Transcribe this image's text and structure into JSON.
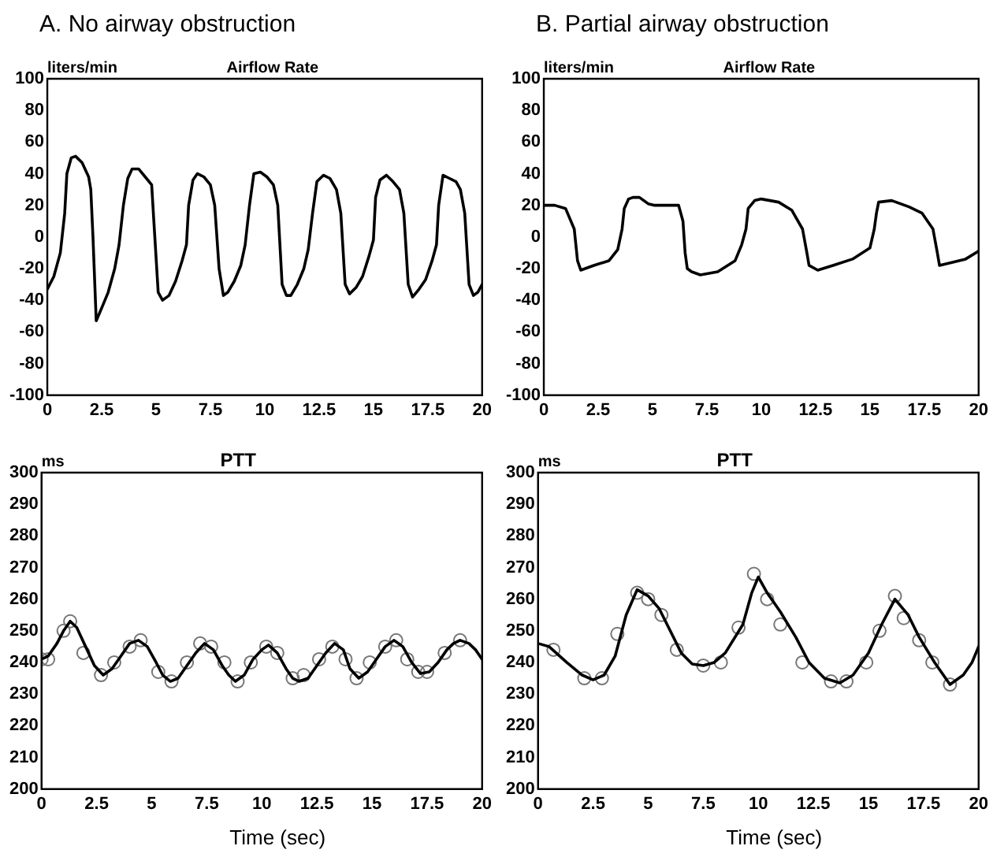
{
  "chart_data": [
    {
      "type": "line",
      "title": "A. No airway obstruction",
      "subtitle": "Airflow Rate",
      "ylabel": "liters/min",
      "xlim": [
        0,
        20
      ],
      "xticks": [
        0,
        2.5,
        5,
        7.5,
        10,
        12.5,
        15,
        17.5,
        20
      ],
      "ylim": [
        -100,
        100
      ],
      "yticks": [
        -100,
        -80,
        -60,
        -40,
        -20,
        0,
        20,
        40,
        60,
        80,
        100
      ],
      "grid": false,
      "marker": "none",
      "series": [
        {
          "type": "line",
          "color": "#000000",
          "x": [
            0,
            0.3,
            0.6,
            0.8,
            0.9,
            1.1,
            1.3,
            1.6,
            1.9,
            2.0,
            2.1,
            2.25,
            2.5,
            2.8,
            3.1,
            3.3,
            3.5,
            3.7,
            3.9,
            4.2,
            4.5,
            4.8,
            4.9,
            5.1,
            5.3,
            5.6,
            5.9,
            6.2,
            6.4,
            6.5,
            6.7,
            6.9,
            7.2,
            7.5,
            7.7,
            7.9,
            8.1,
            8.3,
            8.6,
            8.9,
            9.1,
            9.3,
            9.5,
            9.8,
            10.1,
            10.4,
            10.6,
            10.8,
            11.0,
            11.2,
            11.5,
            11.8,
            12.0,
            12.2,
            12.4,
            12.7,
            13.0,
            13.3,
            13.5,
            13.7,
            13.9,
            14.2,
            14.5,
            14.8,
            15.0,
            15.1,
            15.3,
            15.6,
            15.9,
            16.2,
            16.4,
            16.6,
            16.8,
            17.1,
            17.4,
            17.7,
            17.9,
            18.0,
            18.2,
            18.5,
            18.8,
            19.0,
            19.2,
            19.4,
            19.6,
            19.8,
            20
          ],
          "values": [
            -33,
            -25,
            -10,
            15,
            40,
            50,
            51,
            47,
            38,
            30,
            0,
            -53,
            -45,
            -35,
            -20,
            -5,
            20,
            37,
            43,
            43,
            38,
            33,
            10,
            -35,
            -40,
            -37,
            -28,
            -15,
            -5,
            20,
            36,
            40,
            38,
            33,
            20,
            -20,
            -37,
            -35,
            -28,
            -18,
            -5,
            20,
            40,
            41,
            38,
            33,
            20,
            -30,
            -37,
            -37,
            -30,
            -20,
            -8,
            15,
            35,
            39,
            37,
            30,
            15,
            -30,
            -36,
            -32,
            -25,
            -12,
            -2,
            25,
            36,
            39,
            35,
            30,
            15,
            -30,
            -38,
            -33,
            -27,
            -15,
            -5,
            20,
            39,
            37,
            35,
            30,
            15,
            -30,
            -37,
            -35,
            -30
          ]
        }
      ]
    },
    {
      "type": "line",
      "title": "B. Partial airway obstruction",
      "subtitle": "Airflow Rate",
      "ylabel": "liters/min",
      "xlim": [
        0,
        20
      ],
      "xticks": [
        0,
        2.5,
        5,
        7.5,
        10,
        12.5,
        15,
        17.5,
        20
      ],
      "ylim": [
        -100,
        100
      ],
      "yticks": [
        -100,
        -80,
        -60,
        -40,
        -20,
        0,
        20,
        40,
        60,
        80,
        100
      ],
      "grid": false,
      "marker": "none",
      "series": [
        {
          "type": "line",
          "color": "#000000",
          "x": [
            0,
            0.5,
            1.0,
            1.4,
            1.55,
            1.7,
            2.3,
            3.0,
            3.4,
            3.6,
            3.7,
            3.9,
            4.1,
            4.4,
            4.8,
            5.1,
            5.7,
            6.2,
            6.4,
            6.5,
            6.6,
            6.8,
            7.2,
            8.0,
            8.8,
            9.1,
            9.3,
            9.4,
            9.7,
            10.0,
            10.8,
            11.4,
            11.9,
            12.1,
            12.2,
            12.6,
            13.3,
            14.2,
            15.0,
            15.2,
            15.3,
            15.4,
            16.0,
            16.8,
            17.4,
            17.9,
            18.1,
            18.2,
            18.8,
            19.4,
            20
          ],
          "values": [
            20,
            20,
            18,
            5,
            -15,
            -21,
            -18,
            -15,
            -8,
            5,
            18,
            24,
            25,
            25,
            21,
            20,
            20,
            20,
            10,
            -10,
            -20,
            -22,
            -24,
            -22,
            -15,
            -5,
            5,
            18,
            23,
            24,
            22,
            17,
            5,
            -10,
            -18,
            -21,
            -18,
            -14,
            -7,
            5,
            15,
            22,
            23,
            19,
            15,
            5,
            -10,
            -18,
            -16,
            -14,
            -9
          ]
        }
      ]
    },
    {
      "type": "line",
      "title": "PTT",
      "ylabel": "ms",
      "xlabel": "Time (sec)",
      "xlim": [
        0,
        20
      ],
      "xticks": [
        0,
        2.5,
        5,
        7.5,
        10,
        12.5,
        15,
        17.5,
        20
      ],
      "ylim": [
        200,
        300
      ],
      "yticks": [
        200,
        210,
        220,
        230,
        240,
        250,
        260,
        270,
        280,
        290,
        300
      ],
      "grid": false,
      "marker": "none",
      "series": [
        {
          "type": "line",
          "color": "#000000",
          "x": [
            0,
            0.3,
            0.7,
            1.0,
            1.3,
            1.6,
            2.0,
            2.4,
            2.8,
            3.2,
            3.6,
            4.0,
            4.4,
            4.8,
            5.2,
            5.5,
            5.85,
            6.2,
            6.6,
            7.0,
            7.4,
            7.8,
            8.2,
            8.5,
            8.8,
            9.2,
            9.6,
            10.0,
            10.3,
            10.7,
            11.1,
            11.4,
            11.7,
            12.1,
            12.5,
            12.9,
            13.3,
            13.7,
            14.0,
            14.4,
            14.8,
            15.2,
            15.6,
            16.0,
            16.4,
            16.8,
            17.2,
            17.6,
            18.0,
            18.4,
            18.7,
            19.0,
            19.4,
            19.7,
            20
          ],
          "values": [
            241,
            242,
            246,
            250,
            253,
            251,
            245,
            239,
            236,
            238,
            242,
            246,
            247,
            245,
            240,
            236,
            234,
            235,
            239,
            243,
            246,
            244,
            239,
            236,
            234,
            236,
            241,
            244,
            245.5,
            243,
            238,
            235,
            234,
            235,
            239,
            243,
            246,
            244,
            238,
            235,
            237,
            241,
            245,
            247,
            245,
            240,
            236.5,
            237,
            240,
            244,
            246,
            247,
            246,
            244,
            241
          ]
        },
        {
          "type": "scatter",
          "color": "#777777",
          "marker": "circle",
          "x": [
            0,
            0.3,
            1.0,
            1.3,
            1.9,
            2.7,
            3.3,
            4.0,
            4.5,
            5.3,
            5.9,
            6.6,
            7.2,
            7.7,
            8.3,
            8.9,
            9.5,
            10.2,
            10.7,
            11.4,
            11.9,
            12.6,
            13.2,
            13.8,
            14.3,
            14.9,
            15.6,
            16.1,
            16.6,
            17.1,
            17.5,
            18.3,
            19.0
          ],
          "values": [
            241,
            241,
            250,
            253,
            243,
            236,
            240,
            245,
            247,
            237,
            234,
            240,
            246,
            245,
            240,
            234,
            240,
            245,
            243,
            235,
            236,
            241,
            245,
            241,
            235,
            240,
            245,
            247,
            241,
            237,
            237,
            243,
            247
          ]
        }
      ]
    },
    {
      "type": "line",
      "title": "PTT",
      "ylabel": "ms",
      "xlabel": "Time (sec)",
      "xlim": [
        0,
        20
      ],
      "xticks": [
        0,
        2.5,
        5,
        7.5,
        10,
        12.5,
        15,
        17.5,
        20
      ],
      "ylim": [
        200,
        300
      ],
      "yticks": [
        200,
        210,
        220,
        230,
        240,
        250,
        260,
        270,
        280,
        290,
        300
      ],
      "grid": false,
      "marker": "none",
      "series": [
        {
          "type": "line",
          "color": "#000000",
          "x": [
            0,
            0.5,
            1.3,
            2.0,
            2.5,
            3.0,
            3.5,
            4.0,
            4.5,
            5.0,
            5.5,
            6.0,
            6.5,
            7.0,
            7.5,
            8.0,
            8.5,
            9.3,
            9.7,
            10.0,
            10.4,
            11.0,
            11.7,
            12.3,
            13.0,
            13.7,
            14.3,
            15.0,
            15.6,
            16.2,
            16.8,
            17.3,
            18.0,
            18.7,
            19.3,
            19.7,
            20
          ],
          "values": [
            246,
            245,
            240,
            236,
            234.5,
            236,
            242,
            255,
            263,
            261,
            257,
            250,
            243,
            239.5,
            239,
            240,
            243,
            252,
            262,
            267,
            262,
            256,
            248,
            240,
            235,
            233.5,
            236,
            243,
            252,
            260,
            255,
            248,
            240,
            233,
            236,
            240,
            245
          ]
        },
        {
          "type": "scatter",
          "color": "#777777",
          "marker": "circle",
          "x": [
            0.7,
            2.1,
            2.9,
            3.6,
            4.5,
            5.0,
            5.6,
            6.3,
            7.5,
            8.3,
            9.1,
            9.8,
            10.4,
            11.0,
            12.0,
            13.3,
            14.0,
            14.9,
            15.5,
            16.2,
            16.6,
            17.3,
            17.9,
            18.7
          ],
          "values": [
            244,
            235,
            235,
            249,
            262,
            260,
            255,
            244,
            239,
            240,
            251,
            268,
            260,
            252,
            240,
            234,
            234,
            240,
            250,
            261,
            254,
            247,
            240,
            233
          ]
        }
      ]
    }
  ]
}
